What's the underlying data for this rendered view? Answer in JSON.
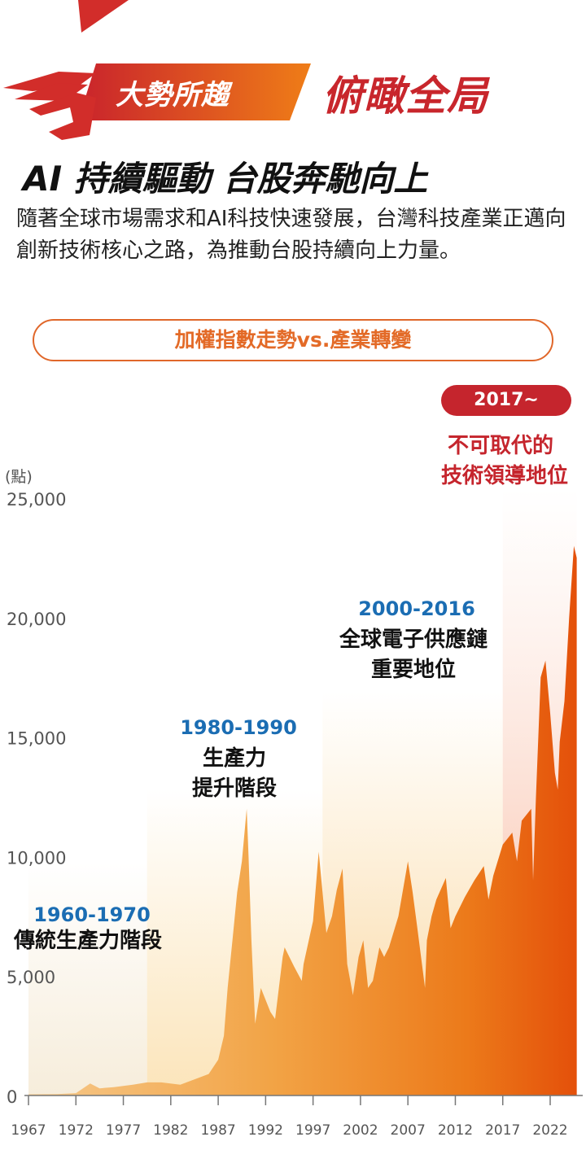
{
  "header": {
    "kicker": "大勢所趨",
    "kicker_big": "俯瞰全局",
    "headline": "AI 持續驅動 台股奔馳向上",
    "intro": "隨著全球市場需求和AI科技快速發展，台灣科技產業正邁向創新技術核心之路，為推動台股持續向上力量。",
    "section_pill": "加權指數走勢vs.產業轉變"
  },
  "colors": {
    "brand_red": "#c5252d",
    "brand_orange": "#e8731f",
    "year_blue": "#1b6db3"
  },
  "periods": [
    {
      "years": "1960-1970",
      "desc": [
        "傳統生產力階段"
      ]
    },
    {
      "years": "1980-1990",
      "desc": [
        "生產力",
        "提升階段"
      ]
    },
    {
      "years": "2000-2016",
      "desc": [
        "全球電子供應鏈",
        "重要地位"
      ]
    },
    {
      "years": "2017~",
      "desc": [
        "不可取代的",
        "技術領導地位"
      ]
    }
  ],
  "chart_data": {
    "type": "area",
    "title": "",
    "ylabel": "(點)",
    "xlabel": "",
    "ylim": [
      0,
      25000
    ],
    "xlim": [
      1967,
      2025
    ],
    "y_ticks": [
      "0",
      "5,000",
      "10,000",
      "15,000",
      "20,000",
      "25,000"
    ],
    "y_tick_values": [
      0,
      5000,
      10000,
      15000,
      20000,
      25000
    ],
    "x_ticks": [
      "1967",
      "1972",
      "1977",
      "1982",
      "1987",
      "1992",
      "1997",
      "2002",
      "2007",
      "2012",
      "2017",
      "2022"
    ],
    "x_tick_values": [
      1967,
      1972,
      1977,
      1982,
      1987,
      1992,
      1997,
      2002,
      2007,
      2012,
      2017,
      2022
    ],
    "grid": false,
    "period_bands": [
      {
        "start": 1967,
        "end": 1979.5
      },
      {
        "start": 1979.5,
        "end": 1998.0
      },
      {
        "start": 1998.0,
        "end": 2017.0
      },
      {
        "start": 2017.0,
        "end": 2024.8
      }
    ],
    "series": [
      {
        "x": [
          1967,
          1970,
          1972,
          1973.5,
          1974.5,
          1976,
          1978,
          1979.5,
          1981,
          1983,
          1985,
          1986,
          1987,
          1987.6,
          1988,
          1988.5,
          1989,
          1989.5,
          1990.0,
          1990.2,
          1990.5,
          1990.9,
          1991.5,
          1992.5,
          1993,
          1993.8,
          1994,
          1995,
          1995.8,
          1996,
          1997,
          1997.6,
          1998.4,
          1999,
          1999.5,
          2000.1,
          2000.6,
          2001.2,
          2001.8,
          2002.3,
          2002.8,
          2003.3,
          2004,
          2004.5,
          2005,
          2006,
          2007,
          2007.5,
          2008,
          2008.8,
          2009,
          2009.5,
          2010,
          2011,
          2011.5,
          2012,
          2013,
          2014,
          2015,
          2015.5,
          2016,
          2017,
          2018,
          2018.5,
          2019,
          2020,
          2020.2,
          2020.5,
          2021,
          2021.5,
          2022,
          2022.5,
          2022.8,
          2023,
          2023.5,
          2024,
          2024.5,
          2024.8
        ],
        "values": [
          50,
          60,
          100,
          500,
          300,
          350,
          450,
          550,
          550,
          450,
          750,
          900,
          1500,
          2500,
          4500,
          6500,
          8500,
          9800,
          12000,
          10000,
          6500,
          3000,
          4500,
          3500,
          3200,
          5800,
          6200,
          5400,
          4800,
          5500,
          7300,
          10200,
          6800,
          7500,
          8600,
          9500,
          5500,
          4200,
          5800,
          6500,
          4500,
          4800,
          6200,
          5800,
          6200,
          7500,
          9800,
          8500,
          7000,
          4500,
          6500,
          7500,
          8200,
          9100,
          7000,
          7500,
          8300,
          9000,
          9600,
          8200,
          9200,
          10500,
          11000,
          9800,
          11500,
          12000,
          9000,
          12500,
          17500,
          18200,
          16000,
          13500,
          12800,
          14800,
          16500,
          20000,
          23000,
          22500
        ]
      }
    ]
  }
}
